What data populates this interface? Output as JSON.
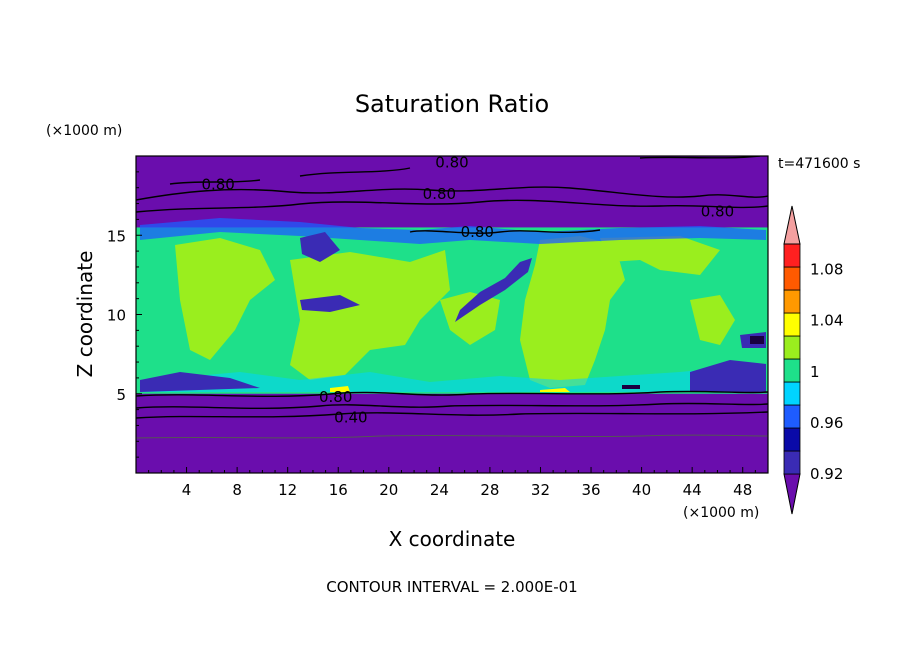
{
  "chart_data": {
    "type": "heatmap",
    "title": "Saturation Ratio",
    "xlabel": "X coordinate",
    "ylabel": "Z coordinate",
    "x_unit": "(×1000 m)",
    "y_unit": "(×1000 m)",
    "time_label": "t=471600 s",
    "footer": "CONTOUR INTERVAL = 2.000E-01",
    "xlim": [
      0,
      50
    ],
    "ylim": [
      0,
      20
    ],
    "x_ticks": [
      4,
      8,
      12,
      16,
      20,
      24,
      28,
      32,
      36,
      40,
      44,
      48
    ],
    "y_ticks": [
      5,
      10,
      15
    ],
    "colorbar": {
      "levels": [
        0.92,
        0.94,
        0.96,
        0.98,
        1.0,
        1.02,
        1.04,
        1.06,
        1.08,
        1.1
      ],
      "tick_labels": [
        "1.08",
        "1.04",
        "1",
        "0.96",
        "0.92"
      ],
      "tick_values": [
        1.08,
        1.04,
        1.0,
        0.96,
        0.92
      ],
      "colors": [
        "#6a0dad",
        "#3a2bb4",
        "#0a0aa8",
        "#1e5cff",
        "#00d4ff",
        "#1ee08a",
        "#9aee1e",
        "#ffff00",
        "#ff9900",
        "#ff5a00",
        "#ff2020",
        "#f4a0a0"
      ]
    },
    "regions": [
      {
        "level": "below 0.92",
        "xmin": 0,
        "xmax": 50,
        "zmin": 0,
        "zmax": 5,
        "color": "#6a0dad"
      },
      {
        "level": "1.00-1.02",
        "xmin": 0,
        "xmax": 50,
        "zmin": 5,
        "zmax": 15.5,
        "color": "#1ee08a"
      },
      {
        "level": "below 0.92",
        "xmin": 0,
        "xmax": 50,
        "zmin": 15.5,
        "zmax": 20,
        "color": "#6a0dad"
      }
    ],
    "contours": [
      {
        "label": "0.80",
        "x": 6.5,
        "z": 18.2
      },
      {
        "label": "0.80",
        "x": 25,
        "z": 19.6
      },
      {
        "label": "0.80",
        "x": 24,
        "z": 17.6
      },
      {
        "label": "0.80",
        "x": 27,
        "z": 15.2
      },
      {
        "label": "0.80",
        "x": 46,
        "z": 16.5
      },
      {
        "label": "0.80",
        "x": 15.8,
        "z": 4.8
      },
      {
        "label": "0.40",
        "x": 17,
        "z": 3.5
      }
    ]
  }
}
